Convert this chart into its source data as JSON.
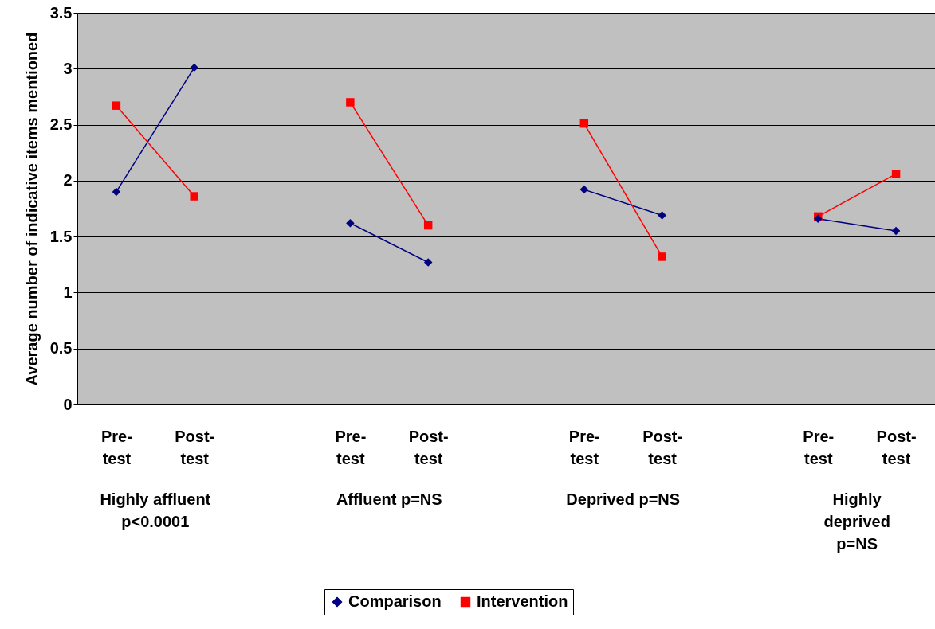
{
  "chart_data": {
    "type": "line",
    "ylabel": "Average number of indicative items mentioned",
    "categories": [
      "Pre-\ntest",
      "Post-\ntest",
      null,
      "Pre-\ntest",
      "Post-\ntest",
      null,
      "Pre-\ntest",
      "Post-\ntest",
      null,
      "Pre-\ntest",
      "Post-\ntest"
    ],
    "series": [
      {
        "name": "Comparison",
        "color": "#000080",
        "marker": "diamond",
        "values": [
          1.9,
          3.01,
          null,
          1.62,
          1.27,
          null,
          1.92,
          1.69,
          null,
          1.66,
          1.55
        ]
      },
      {
        "name": "Intervention",
        "color": "#ff0000",
        "marker": "square",
        "values": [
          2.67,
          1.86,
          null,
          2.7,
          1.6,
          null,
          2.51,
          1.32,
          null,
          1.68,
          2.06
        ]
      }
    ],
    "annotations": [
      "Highly affluent\np<0.0001",
      "Affluent p=NS",
      "Deprived p=NS",
      "Highly\ndeprived\np=NS"
    ],
    "ylim": [
      0,
      3.5
    ],
    "yticks": [
      0,
      0.5,
      1,
      1.5,
      2,
      2.5,
      3,
      3.5
    ],
    "grid": "y",
    "legend": "bottom",
    "line_style": "solid"
  }
}
